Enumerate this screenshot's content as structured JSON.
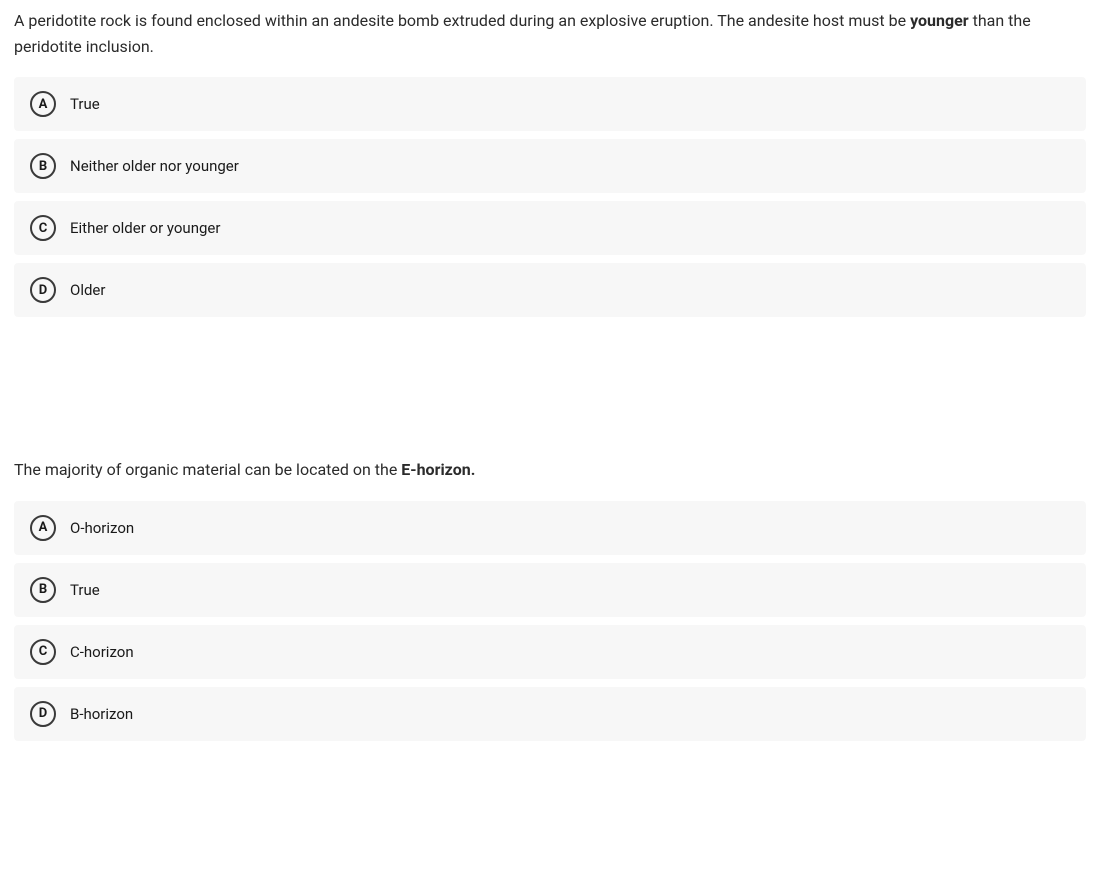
{
  "questions": [
    {
      "text_parts": [
        {
          "text": "A peridotite rock is found enclosed within an andesite bomb extruded during an explosive eruption. The andesite host must be ",
          "bold": false
        },
        {
          "text": "younger",
          "bold": true
        },
        {
          "text": " than the peridotite inclusion.",
          "bold": false
        }
      ],
      "options": [
        {
          "letter": "A",
          "label": "True"
        },
        {
          "letter": "B",
          "label": "Neither older nor younger"
        },
        {
          "letter": "C",
          "label": "Either older or younger"
        },
        {
          "letter": "D",
          "label": "Older"
        }
      ]
    },
    {
      "text_parts": [
        {
          "text": "The majority of organic material can be located on the ",
          "bold": false
        },
        {
          "text": "E-horizon.",
          "bold": true
        }
      ],
      "options": [
        {
          "letter": "A",
          "label": "O-horizon"
        },
        {
          "letter": "B",
          "label": "True"
        },
        {
          "letter": "C",
          "label": "C-horizon"
        },
        {
          "letter": "D",
          "label": "B-horizon"
        }
      ]
    }
  ],
  "styling": {
    "option_bg": "#f7f7f7",
    "page_bg": "#ffffff",
    "text_color": "#1a1a1a",
    "question_color": "#2b2b2b",
    "letter_border": "#3a3a3a",
    "font_size_question": 16,
    "font_size_option": 15,
    "font_size_letter": 13,
    "letter_circle_size": 26,
    "option_gap": 8,
    "block_gap": 140
  }
}
